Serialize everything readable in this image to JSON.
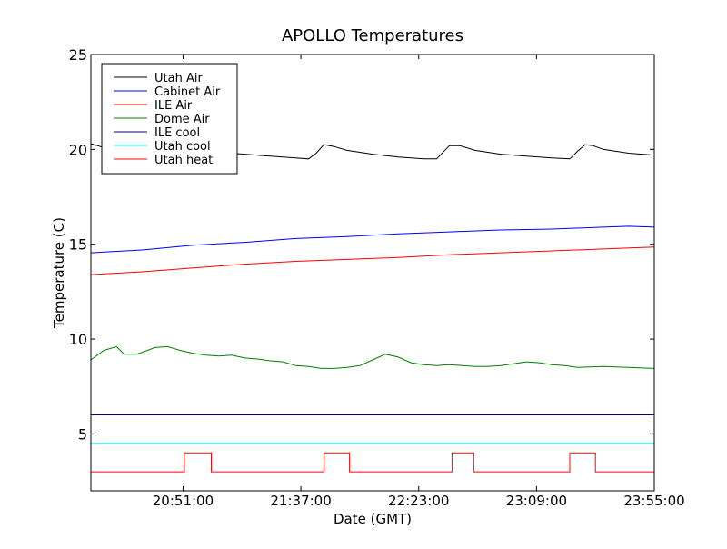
{
  "chart_data": {
    "type": "line",
    "title": "APOLLO Temperatures",
    "xlabel": "Date (GMT)",
    "ylabel": "Temperature (C)",
    "x_unit": "minutes since 20:15:00 GMT",
    "xlim": [
      0,
      220
    ],
    "ylim": [
      2,
      25
    ],
    "yticks": [
      5,
      10,
      15,
      20,
      25
    ],
    "xticks": [
      {
        "value": 36,
        "label": "20:51:00"
      },
      {
        "value": 82,
        "label": "21:37:00"
      },
      {
        "value": 128,
        "label": "22:23:00"
      },
      {
        "value": 174,
        "label": "23:09:00"
      },
      {
        "value": 220,
        "label": "23:55:00"
      }
    ],
    "legend_position": "top-left",
    "series": [
      {
        "name": "Utah Air",
        "color": "#000000",
        "x": [
          0,
          5,
          10,
          20,
          30,
          40,
          50,
          60,
          70,
          80,
          85,
          88,
          91,
          95,
          100,
          110,
          120,
          130,
          135,
          140,
          144,
          150,
          160,
          170,
          180,
          187,
          190,
          193,
          196,
          200,
          210,
          220
        ],
        "y": [
          20.3,
          20.1,
          20.2,
          20.2,
          20.1,
          20.0,
          19.85,
          19.75,
          19.65,
          19.55,
          19.5,
          19.8,
          20.25,
          20.15,
          19.95,
          19.75,
          19.6,
          19.5,
          19.5,
          20.2,
          20.2,
          19.95,
          19.75,
          19.65,
          19.55,
          19.5,
          19.9,
          20.25,
          20.2,
          20.0,
          19.8,
          19.7
        ]
      },
      {
        "name": "Cabinet Air",
        "color": "#0000ff",
        "x": [
          0,
          20,
          40,
          60,
          80,
          100,
          120,
          140,
          160,
          180,
          200,
          210,
          220
        ],
        "y": [
          14.55,
          14.7,
          14.95,
          15.1,
          15.3,
          15.4,
          15.55,
          15.65,
          15.75,
          15.8,
          15.9,
          15.95,
          15.9
        ]
      },
      {
        "name": "ILE Air",
        "color": "#ff0000",
        "x": [
          0,
          20,
          40,
          60,
          80,
          100,
          120,
          140,
          160,
          180,
          200,
          220
        ],
        "y": [
          13.4,
          13.55,
          13.75,
          13.95,
          14.1,
          14.2,
          14.3,
          14.45,
          14.55,
          14.65,
          14.75,
          14.85
        ]
      },
      {
        "name": "Dome Air",
        "color": "#008000",
        "x": [
          0,
          5,
          10,
          13,
          18,
          22,
          25,
          30,
          35,
          40,
          45,
          50,
          55,
          60,
          65,
          70,
          75,
          80,
          85,
          90,
          95,
          100,
          105,
          110,
          115,
          120,
          125,
          130,
          135,
          140,
          145,
          150,
          155,
          160,
          165,
          170,
          175,
          180,
          185,
          190,
          200,
          210,
          220
        ],
        "y": [
          8.9,
          9.4,
          9.6,
          9.2,
          9.2,
          9.4,
          9.55,
          9.6,
          9.4,
          9.25,
          9.15,
          9.1,
          9.15,
          9.0,
          8.95,
          8.85,
          8.8,
          8.6,
          8.55,
          8.45,
          8.45,
          8.5,
          8.6,
          8.9,
          9.2,
          9.05,
          8.75,
          8.65,
          8.6,
          8.65,
          8.6,
          8.55,
          8.55,
          8.6,
          8.7,
          8.8,
          8.75,
          8.65,
          8.6,
          8.5,
          8.55,
          8.5,
          8.45
        ]
      },
      {
        "name": "ILE cool",
        "color": "#000080",
        "x": [
          0,
          220
        ],
        "y": [
          6.0,
          6.0
        ]
      },
      {
        "name": "Utah cool",
        "color": "#00ffff",
        "x": [
          0,
          220
        ],
        "y": [
          4.5,
          4.5
        ]
      },
      {
        "name": "Utah heat",
        "color": "#ff0000",
        "step": true,
        "x": [
          0,
          36.5,
          36.5,
          47,
          47,
          91,
          91,
          101,
          101,
          141,
          141,
          149.5,
          149.5,
          187,
          187,
          197,
          197,
          220
        ],
        "y": [
          3,
          3,
          4,
          4,
          3,
          3,
          4,
          4,
          3,
          3,
          4,
          4,
          3,
          3,
          4,
          4,
          3,
          3
        ]
      }
    ]
  }
}
